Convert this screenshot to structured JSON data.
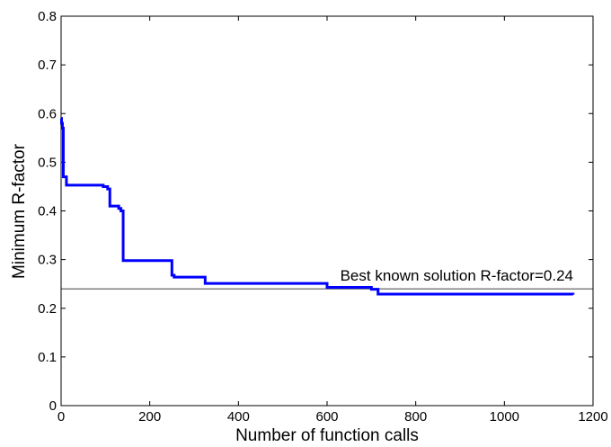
{
  "chart_data": {
    "type": "line",
    "title": "",
    "xlabel": "Number of function calls",
    "ylabel": "Minimum R-factor",
    "xlim": [
      0,
      1200
    ],
    "ylim": [
      0,
      0.8
    ],
    "xticks": [
      "0",
      "200",
      "400",
      "600",
      "800",
      "1000",
      "1200"
    ],
    "yticks": [
      "0",
      "0.1",
      "0.2",
      "0.3",
      "0.4",
      "0.5",
      "0.6",
      "0.7",
      "0.8"
    ],
    "grid": false,
    "series": [
      {
        "color": "#0000ff",
        "step": true,
        "x": [
          0,
          1,
          3,
          5,
          6,
          12,
          95,
          105,
          110,
          130,
          135,
          140,
          250,
          255,
          325,
          600,
          700,
          715,
          1155
        ],
        "y": [
          0.59,
          0.58,
          0.57,
          0.47,
          0.47,
          0.453,
          0.45,
          0.445,
          0.41,
          0.405,
          0.4,
          0.298,
          0.268,
          0.264,
          0.251,
          0.243,
          0.239,
          0.229,
          0.228
        ]
      }
    ],
    "annotations": [
      {
        "type": "hline",
        "y": 0.24,
        "color": "#000000",
        "text": "Best known solution R-factor=0.24"
      }
    ]
  }
}
